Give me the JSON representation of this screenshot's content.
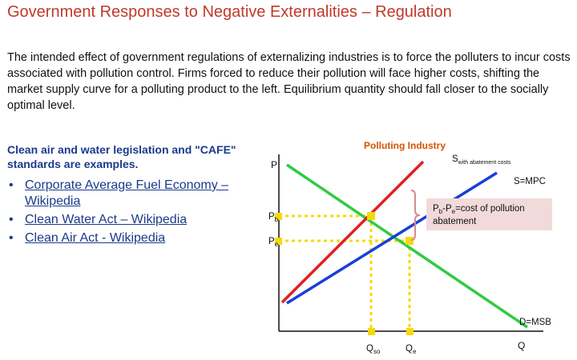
{
  "title": "Government Responses to Negative Externalities – Regulation",
  "intro": "The intended effect of government regulations of externalizing industries is to force the polluters to incur costs associated with pollution control. Firms forced to reduce their pollution will face higher costs, shifting the market supply curve for a polluting product to the left. Equilibrium quantity should fall closer to the socially optimal level.",
  "examples_heading": "Clean air and water legislation and \"CAFE\" standards are examples.",
  "links": [
    "Corporate Average Fuel Economy – Wikipedia",
    "Clean Water Act – Wikipedia",
    "Clean Air Act - Wikipedia"
  ],
  "diagram": {
    "industry_label": "Polluting Industry",
    "p_axis": "P",
    "q_axis": "Q",
    "supply_abatement": {
      "main": "S",
      "sub": "with abatement costs"
    },
    "supply_mpc": "S=MPC",
    "demand": "D=MSB",
    "pb": {
      "main": "P",
      "sub": "b"
    },
    "pe": {
      "main": "P",
      "sub": "e"
    },
    "qso": {
      "main": "Q",
      "sub": "so"
    },
    "qe": {
      "main": "Q",
      "sub": "e"
    },
    "note": {
      "p1": "P",
      "s1": "b",
      "dash": "-P",
      "s2": "e",
      "line1_rest": "=cost of pollution",
      "line2": "abatement"
    }
  },
  "colors": {
    "title": "#c0392b",
    "demand": "#2ecc40",
    "supply_mpc": "#1a3ed8",
    "supply_abatement": "#e02020",
    "guides": "#f5d90a",
    "brace": "#d98a8a",
    "note_bg": "#f2dada",
    "industry_label": "#d35400"
  }
}
